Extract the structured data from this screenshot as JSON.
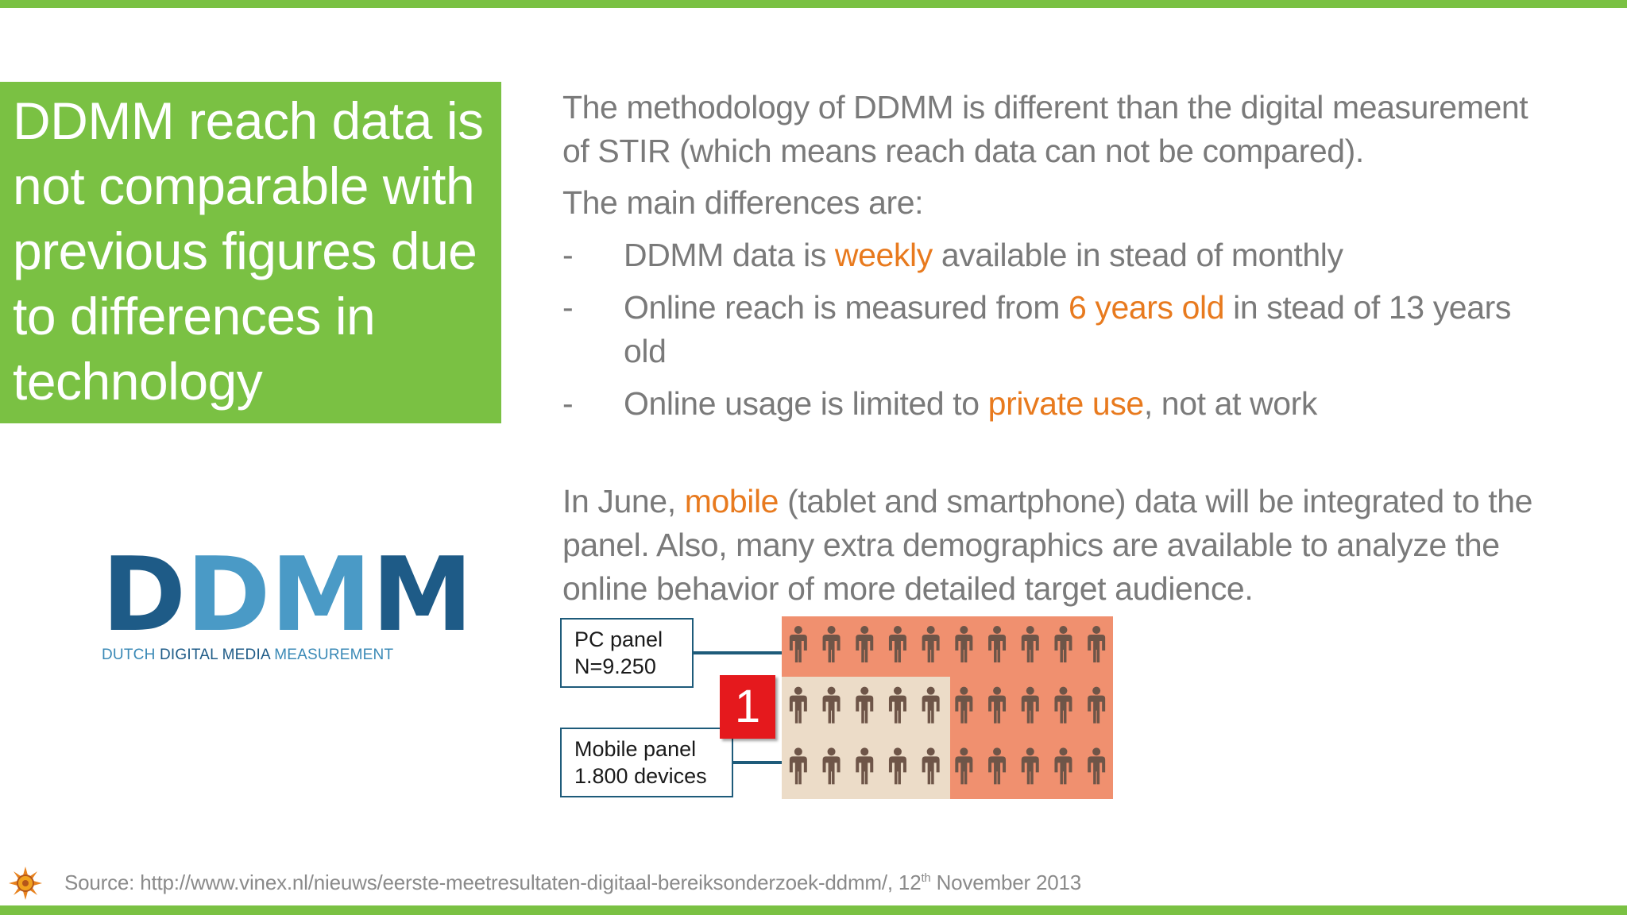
{
  "colors": {
    "accent_green": "#7ac143",
    "highlight_orange": "#e87a1e",
    "body_gray": "#7a7a7a",
    "logo_dark_blue": "#1e5b87",
    "logo_light_blue": "#4a9ac6",
    "grid_coral": "#f0906f",
    "grid_beige": "#ecdcc8",
    "badge_red": "#e5191d",
    "figure_brown": "#6e5548"
  },
  "title_box": {
    "title": "DDMM reach data is not comparable with previous figures due to differences in technology"
  },
  "logo": {
    "letters": [
      "D",
      "D",
      "M",
      "M"
    ],
    "subtitle_part1": "DUTCH ",
    "subtitle_part2": "DIGITAL MEDIA",
    "subtitle_part3": " MEASUREMENT"
  },
  "content": {
    "para1": "The methodology of DDMM is different than the digital measurement of STIR (which means reach data can not be compared).",
    "para2": "The main differences are:",
    "bullets": [
      {
        "dash": "-",
        "before": "DDMM data is ",
        "highlight": "weekly",
        "after": " available in stead of monthly"
      },
      {
        "dash": "-",
        "before": "Online reach is measured from ",
        "highlight": "6 years old",
        "after": " in stead of 13 years old"
      },
      {
        "dash": "-",
        "before": "Online usage is limited to ",
        "highlight": "private use",
        "after": ", not at work"
      }
    ],
    "para3_before": "In June, ",
    "para3_highlight": "mobile",
    "para3_after": " (tablet and smartphone) data will be integrated to the panel. Also, many extra demographics are available to analyze the online behavior of more detailed target audience."
  },
  "diagram": {
    "pc_panel_line1": "PC panel",
    "pc_panel_line2": "N=9.250",
    "mobile_panel_line1": "Mobile panel",
    "mobile_panel_line2": "1.800 devices",
    "badge": "1",
    "rows": 3,
    "cols": 10,
    "mobile_rows": 2,
    "mobile_cols": 5
  },
  "footer": {
    "source_prefix": "Source: http://www.vinex.nl/nieuws/eerste-meetresultaten-digitaal-bereiksonderzoek-ddmm/, 12",
    "source_sup": "th",
    "source_suffix": " November 2013",
    "icon": "sun-logo-icon"
  }
}
